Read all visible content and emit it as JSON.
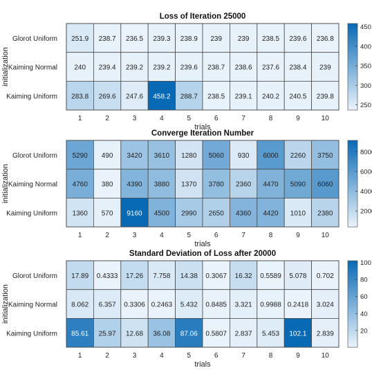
{
  "chart_data": [
    {
      "type": "heatmap",
      "title": "Loss of Iteration 25000",
      "xlabel": "trials",
      "ylabel": "initialization",
      "x": [
        "1",
        "2",
        "3",
        "4",
        "5",
        "6",
        "7",
        "8",
        "9",
        "10"
      ],
      "y": [
        "Glorot Uniform",
        "Kaiming Normal",
        "Kaiming Uniform"
      ],
      "values": [
        [
          "251.9",
          "238.7",
          "236.5",
          "239.3",
          "238.9",
          "239",
          "239",
          "238.5",
          "239.6",
          "236.8"
        ],
        [
          "240",
          "239.4",
          "239.2",
          "239.2",
          "239.6",
          "238.7",
          "238.6",
          "237.6",
          "238.4",
          "239"
        ],
        [
          "283.8",
          "269.6",
          "247.6",
          "458.2",
          "288.7",
          "238.5",
          "239.1",
          "240.2",
          "240.5",
          "239.8"
        ]
      ],
      "colorbar": {
        "ticks": [
          "250",
          "300",
          "350",
          "400",
          "450"
        ],
        "range": [
          236.5,
          458.2
        ]
      }
    },
    {
      "type": "heatmap",
      "title": "Converge Iteration Number",
      "xlabel": "trials",
      "ylabel": "initialization",
      "x": [
        "1",
        "2",
        "3",
        "4",
        "5",
        "6",
        "7",
        "8",
        "9",
        "10"
      ],
      "y": [
        "Glorot Uniform",
        "Kaiming Normal",
        "Kaiming Uniform"
      ],
      "values": [
        [
          "5290",
          "490",
          "3420",
          "3610",
          "1280",
          "5060",
          "930",
          "6000",
          "2260",
          "3750"
        ],
        [
          "4760",
          "380",
          "4390",
          "3880",
          "1370",
          "3780",
          "2360",
          "4470",
          "5090",
          "6060"
        ],
        [
          "1360",
          "570",
          "9160",
          "4500",
          "2990",
          "2650",
          "4360",
          "4420",
          "1010",
          "2380"
        ]
      ],
      "colorbar": {
        "ticks": [
          "2000",
          "4000",
          "6000",
          "8000"
        ],
        "range": [
          380,
          9160
        ]
      }
    },
    {
      "type": "heatmap",
      "title": "Standard Deviation of Loss after 20000",
      "xlabel": "trials",
      "ylabel": "initialization",
      "x": [
        "1",
        "2",
        "3",
        "4",
        "5",
        "6",
        "7",
        "8",
        "9",
        "10"
      ],
      "y": [
        "Glorot Uniform",
        "Kaiming Normal",
        "Kaiming Uniform"
      ],
      "values": [
        [
          "17.89",
          "0.4333",
          "17.26",
          "7.758",
          "14.38",
          "0.3067",
          "16.32",
          "0.5589",
          "5.078",
          "0.702"
        ],
        [
          "8.062",
          "6.357",
          "0.3306",
          "0.2463",
          "5.432",
          "0.8485",
          "3.321",
          "0.9988",
          "0.2418",
          "3.024"
        ],
        [
          "85.61",
          "25.97",
          "12.68",
          "36.08",
          "87.06",
          "0.5807",
          "2.837",
          "5.453",
          "102.1",
          "2.839"
        ]
      ],
      "colorbar": {
        "ticks": [
          "20",
          "40",
          "60",
          "80",
          "100"
        ],
        "range": [
          0.2418,
          102.1
        ]
      }
    }
  ],
  "colors": {
    "low": "#eaf3fb",
    "high": "#0869b5",
    "grid": "#4a4a4a",
    "text_dark": "#222222",
    "text_light": "#ffffff"
  }
}
